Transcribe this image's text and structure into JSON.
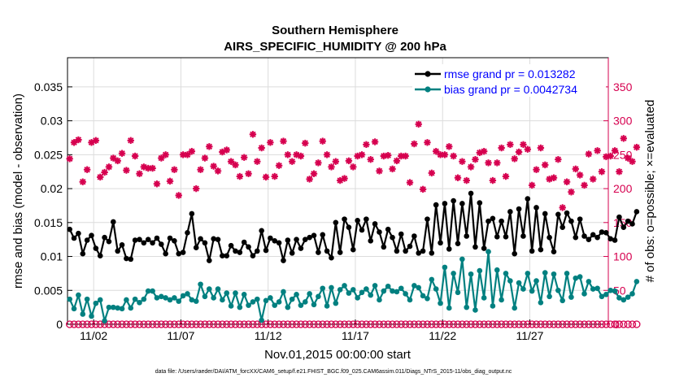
{
  "colors": {
    "rmse": "#000000",
    "bias": "#008080",
    "obs": "#d6004f",
    "legend_text": "#0000ff",
    "grid": "#dcdcdc"
  },
  "footer": "data file: /Users/raeder/DAI/ATM_forcXX/CAM6_setup/f.e21.FHIST_BGC.f09_025.CAM6assim.011/Diags_NTrS_2015-11/obs_diag_output.nc",
  "chart_data": {
    "type": "line",
    "title": "Southern Hemisphere",
    "subtitle": "AIRS_SPECIFIC_HUMIDITY @ 200 hPa",
    "xlabel": "Nov.01,2015 00:00:00 start",
    "ylabel": "rmse and bias (model - observation)",
    "y2label": "# of obs: o=possible; ×=evaluated",
    "xlim": [
      0,
      31
    ],
    "ylim": [
      0,
      0.0393
    ],
    "y2lim": [
      0,
      393
    ],
    "xtick_values": [
      1.5,
      6.5,
      11.5,
      16.5,
      21.5,
      26.5
    ],
    "xtick_labels": [
      "11/02",
      "11/07",
      "11/12",
      "11/17",
      "11/22",
      "11/27"
    ],
    "ytick_values": [
      0,
      0.005,
      0.01,
      0.015,
      0.02,
      0.025,
      0.03,
      0.035
    ],
    "ytick_labels": [
      "0",
      "0.005",
      "0.01",
      "0.015",
      "0.02",
      "0.025",
      "0.03",
      "0.035"
    ],
    "y2tick_values": [
      0,
      50,
      100,
      150,
      200,
      250,
      300,
      350
    ],
    "y2tick_labels": [
      "0",
      "50",
      "100",
      "150",
      "200",
      "250",
      "300",
      "350"
    ],
    "grid": true,
    "legend_position": "top-right",
    "x_start": 0.125,
    "x_step": 0.25,
    "series": [
      {
        "name": "rmse grand pr = 0.013282",
        "axis": "left",
        "values": [
          0.014,
          0.0127,
          0.0134,
          0.0104,
          0.0124,
          0.0131,
          0.0112,
          0.0101,
          0.0128,
          0.0122,
          0.0151,
          0.0108,
          0.0117,
          0.0097,
          0.0096,
          0.0124,
          0.0125,
          0.012,
          0.0125,
          0.012,
          0.0127,
          0.0118,
          0.0104,
          0.0127,
          0.0123,
          0.0104,
          0.0106,
          0.0135,
          0.0163,
          0.0113,
          0.0126,
          0.012,
          0.0094,
          0.0126,
          0.0125,
          0.0101,
          0.0101,
          0.0116,
          0.0108,
          0.0106,
          0.0121,
          0.0114,
          0.0101,
          0.0108,
          0.0138,
          0.0109,
          0.0127,
          0.0123,
          0.012,
          0.0094,
          0.0124,
          0.0105,
          0.0125,
          0.0112,
          0.0125,
          0.0128,
          0.0131,
          0.0106,
          0.0132,
          0.0108,
          0.0098,
          0.015,
          0.0106,
          0.0155,
          0.0143,
          0.011,
          0.0153,
          0.0139,
          0.0155,
          0.0123,
          0.0148,
          0.0136,
          0.0114,
          0.014,
          0.0128,
          0.0108,
          0.0133,
          0.0108,
          0.0115,
          0.013,
          0.0105,
          0.0108,
          0.0155,
          0.0105,
          0.0176,
          0.012,
          0.0178,
          0.0111,
          0.0182,
          0.0119,
          0.0178,
          0.013,
          0.0193,
          0.0114,
          0.0179,
          0.0112,
          0.0152,
          0.0156,
          0.0129,
          0.0152,
          0.0129,
          0.0166,
          0.0104,
          0.017,
          0.013,
          0.0185,
          0.0108,
          0.0172,
          0.011,
          0.0163,
          0.0128,
          0.0107,
          0.0162,
          0.0143,
          0.0164,
          0.0152,
          0.0128,
          0.0155,
          0.013,
          0.0125,
          0.0132,
          0.0128,
          0.0136,
          0.0135,
          0.0126,
          0.0124,
          0.0158,
          0.0143,
          0.0152,
          0.0148,
          0.0166
        ]
      },
      {
        "name": "bias grand pr = 0.0042734",
        "axis": "left",
        "values": [
          0.0037,
          0.0023,
          0.0043,
          0.0015,
          0.0037,
          0.0012,
          0.0031,
          0.0036,
          0.0005,
          0.0025,
          0.0025,
          0.0024,
          0.0023,
          0.0036,
          0.0024,
          0.0037,
          0.0032,
          0.0037,
          0.0049,
          0.0049,
          0.0039,
          0.0041,
          0.0039,
          0.0036,
          0.0039,
          0.0034,
          0.0042,
          0.0045,
          0.0036,
          0.0034,
          0.0059,
          0.0041,
          0.0052,
          0.0039,
          0.0052,
          0.0036,
          0.0046,
          0.0027,
          0.0046,
          0.0025,
          0.0044,
          0.0028,
          0.0033,
          0.0037,
          0.0006,
          0.0035,
          0.0039,
          0.0028,
          0.0033,
          0.0048,
          0.0025,
          0.0037,
          0.0044,
          0.0028,
          0.0033,
          0.0045,
          0.0029,
          0.0041,
          0.0053,
          0.0027,
          0.0054,
          0.0031,
          0.0051,
          0.0057,
          0.0046,
          0.0051,
          0.0039,
          0.0047,
          0.0052,
          0.0043,
          0.0057,
          0.0036,
          0.0049,
          0.0056,
          0.0049,
          0.0048,
          0.0053,
          0.0045,
          0.0036,
          0.0057,
          0.0054,
          0.0042,
          0.0038,
          0.0066,
          0.0052,
          0.0031,
          0.0084,
          0.0024,
          0.0075,
          0.0047,
          0.0096,
          0.0025,
          0.0074,
          0.0021,
          0.0079,
          0.0039,
          0.0107,
          0.0027,
          0.008,
          0.0036,
          0.0075,
          0.0064,
          0.0024,
          0.0061,
          0.0052,
          0.0075,
          0.0049,
          0.0064,
          0.0032,
          0.0076,
          0.0041,
          0.0074,
          0.005,
          0.0035,
          0.0075,
          0.004,
          0.0068,
          0.007,
          0.0045,
          0.0063,
          0.0052,
          0.0053,
          0.0041,
          0.0044,
          0.005,
          0.0049,
          0.0039,
          0.0036,
          0.004,
          0.0045,
          0.0063
        ]
      },
      {
        "name": "# of obs possible",
        "axis": "right",
        "marker": "circle",
        "values": [
          0,
          0,
          0,
          0,
          0,
          0,
          0,
          0,
          0,
          0,
          0,
          0,
          0,
          0,
          0,
          0,
          0,
          0,
          0,
          0,
          0,
          0,
          0,
          0,
          0,
          0,
          0,
          0,
          0,
          0,
          0,
          0,
          0,
          0,
          0,
          0,
          0,
          0,
          0,
          0,
          0,
          0,
          0,
          0,
          0,
          0,
          0,
          0,
          0,
          0,
          0,
          0,
          0,
          0,
          0,
          0,
          0,
          0,
          0,
          0,
          0,
          0,
          0,
          0,
          0,
          0,
          0,
          0,
          0,
          0,
          0,
          0,
          0,
          0,
          0,
          0,
          0,
          0,
          0,
          0,
          0,
          0,
          0,
          0,
          0,
          0,
          0,
          0,
          0,
          0,
          0,
          0,
          0,
          0,
          0,
          0,
          0,
          0,
          0,
          0,
          0,
          0,
          0,
          0,
          0,
          0,
          0,
          0,
          0,
          0,
          0,
          0,
          0,
          0,
          0,
          0,
          0,
          0,
          0,
          0,
          0,
          0,
          0,
          0,
          0,
          0,
          0,
          0,
          0,
          0,
          0
        ]
      },
      {
        "name": "# of obs evaluated",
        "axis": "right",
        "marker": "star",
        "values": [
          244,
          268,
          272,
          210,
          228,
          268,
          271,
          217,
          224,
          232,
          245,
          241,
          252,
          227,
          271,
          248,
          222,
          232,
          230,
          230,
          207,
          245,
          250,
          211,
          228,
          190,
          250,
          250,
          255,
          200,
          228,
          245,
          262,
          233,
          226,
          254,
          257,
          240,
          235,
          218,
          246,
          222,
          280,
          240,
          260,
          217,
          268,
          218,
          234,
          270,
          250,
          240,
          250,
          248,
          267,
          214,
          222,
          238,
          270,
          250,
          232,
          240,
          212,
          215,
          241,
          232,
          248,
          250,
          265,
          243,
          269,
          226,
          248,
          249,
          229,
          241,
          248,
          248,
          209,
          266,
          295,
          199,
          268,
          223,
          255,
          250,
          250,
          262,
          248,
          216,
          240,
          212,
          232,
          243,
          253,
          255,
          238,
          212,
          238,
          260,
          218,
          265,
          244,
          254,
          265,
          258,
          205,
          228,
          260,
          235,
          214,
          216,
          243,
          172,
          210,
          195,
          229,
          220,
          205,
          251,
          214,
          256,
          225,
          247,
          248,
          256,
          225,
          274,
          245,
          240,
          261
        ]
      }
    ]
  }
}
